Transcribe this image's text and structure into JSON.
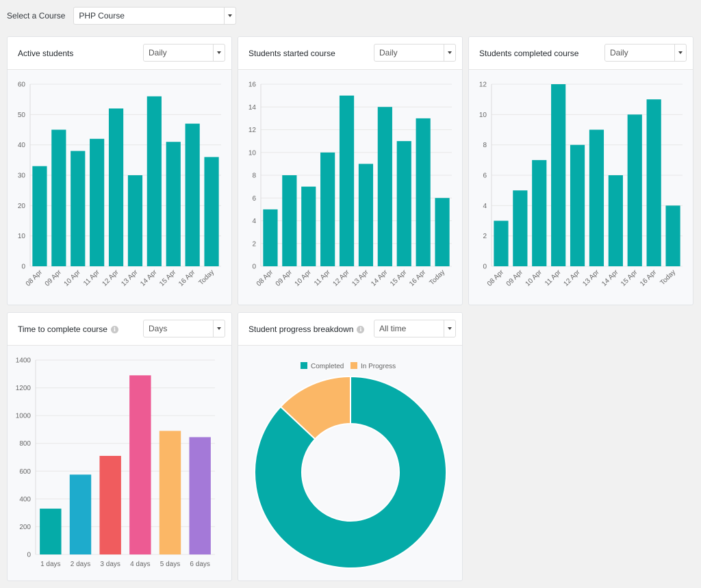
{
  "course_selector": {
    "label": "Select a Course",
    "value": "PHP Course"
  },
  "cards": {
    "active": {
      "title": "Active students",
      "period": "Daily"
    },
    "started": {
      "title": "Students started course",
      "period": "Daily"
    },
    "completed": {
      "title": "Students completed course",
      "period": "Daily"
    },
    "time": {
      "title": "Time to complete course",
      "period": "Days"
    },
    "progress": {
      "title": "Student progress breakdown",
      "period": "All time"
    }
  },
  "colors": {
    "teal": "#05aba8",
    "blue": "#1eabcc",
    "red": "#f05c5e",
    "pink": "#ed5b93",
    "orange": "#fbb766",
    "purple": "#a479d8"
  },
  "chart_data": [
    {
      "id": "active",
      "type": "bar",
      "categories": [
        "08 Apr",
        "09 Apr",
        "10 Apr",
        "11 Apr",
        "12 Apr",
        "13 Apr",
        "14 Apr",
        "15 Apr",
        "16 Apr",
        "Today"
      ],
      "values": [
        33,
        45,
        38,
        42,
        52,
        30,
        56,
        41,
        47,
        36
      ],
      "ylim": [
        0,
        60
      ],
      "yticks": [
        0,
        10,
        20,
        30,
        40,
        50,
        60
      ],
      "colors": [
        "#05aba8"
      ]
    },
    {
      "id": "started",
      "type": "bar",
      "categories": [
        "08 Apr",
        "09 Apr",
        "10 Apr",
        "11 Apr",
        "12 Apr",
        "13 Apr",
        "14 Apr",
        "15 Apr",
        "16 Apr",
        "Today"
      ],
      "values": [
        5,
        8,
        7,
        10,
        15,
        9,
        14,
        11,
        13,
        6
      ],
      "ylim": [
        0,
        16
      ],
      "yticks": [
        0,
        2,
        4,
        6,
        8,
        10,
        12,
        14,
        16
      ],
      "colors": [
        "#05aba8"
      ]
    },
    {
      "id": "completed",
      "type": "bar",
      "categories": [
        "08 Apr",
        "09 Apr",
        "10 Apr",
        "11 Apr",
        "12 Apr",
        "13 Apr",
        "14 Apr",
        "15 Apr",
        "16 Apr",
        "Today"
      ],
      "values": [
        3,
        5,
        7,
        12,
        8,
        9,
        6,
        10,
        11,
        4
      ],
      "ylim": [
        0,
        12
      ],
      "yticks": [
        0,
        2,
        4,
        6,
        8,
        10,
        12
      ],
      "colors": [
        "#05aba8"
      ]
    },
    {
      "id": "time",
      "type": "bar",
      "categories": [
        "1 days",
        "2 days",
        "3 days",
        "4 days",
        "5 days",
        "6 days"
      ],
      "values": [
        330,
        575,
        710,
        1290,
        890,
        845
      ],
      "ylim": [
        0,
        1400
      ],
      "yticks": [
        0,
        200,
        400,
        600,
        800,
        1000,
        1200,
        1400
      ],
      "colors": [
        "#05aba8",
        "#1eabcc",
        "#f05c5e",
        "#ed5b93",
        "#fbb766",
        "#a479d8"
      ]
    },
    {
      "id": "progress",
      "type": "pie",
      "labels": [
        "Completed",
        "In Progress"
      ],
      "values": [
        87,
        13
      ],
      "colors": [
        "#05aba8",
        "#fbb766"
      ],
      "legend": "top"
    }
  ]
}
